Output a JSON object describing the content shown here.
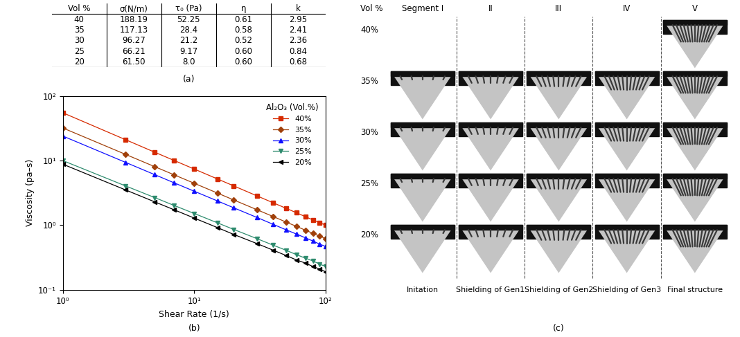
{
  "panel_a": {
    "label": "(a)",
    "table": {
      "columns": [
        "Vol %",
        "σ(N/m)",
        "τ₀ (Pa)",
        "η",
        "k"
      ],
      "rows": [
        [
          "40",
          "188.19",
          "52.25",
          "0.61",
          "2.95"
        ],
        [
          "35",
          "117.13",
          "28.4",
          "0.58",
          "2.41"
        ],
        [
          "30",
          "96.27",
          "21.2",
          "0.52",
          "2.36"
        ],
        [
          "25",
          "66.21",
          "9.17",
          "0.60",
          "0.84"
        ],
        [
          "20",
          "61.50",
          "8.0",
          "0.60",
          "0.68"
        ]
      ]
    }
  },
  "chart_data": {
    "type": "line",
    "panel_label": "(b)",
    "x_label": "Shear Rate (1/s)",
    "y_label": "Viscosity (pa–s)",
    "log": true,
    "xlim": [
      1,
      100
    ],
    "ylim": [
      0.1,
      100
    ],
    "xticks": [
      {
        "value": 1,
        "label": "10⁰"
      },
      {
        "value": 10,
        "label": "10¹"
      },
      {
        "value": 100,
        "label": "10²"
      }
    ],
    "yticks": [
      {
        "value": 0.1,
        "label": "10⁻¹"
      },
      {
        "value": 1,
        "label": "10⁰"
      },
      {
        "value": 10,
        "label": "10¹"
      },
      {
        "value": 100,
        "label": "10²"
      }
    ],
    "legend": "upper right",
    "legend_title": "Al₂O₃ (Vol.%)",
    "x": [
      1,
      3,
      5,
      7,
      10,
      15,
      20,
      30,
      40,
      50,
      60,
      70,
      80,
      90,
      100
    ],
    "series": [
      {
        "name": "40%",
        "color": "#d62a00",
        "marker": "square",
        "values": [
          55.0,
          21.1,
          13.5,
          10.1,
          7.41,
          5.21,
          4.06,
          2.85,
          2.22,
          1.83,
          1.56,
          1.36,
          1.21,
          1.1,
          1.0
        ]
      },
      {
        "name": "35%",
        "color": "#a0400a",
        "marker": "diamond",
        "values": [
          32.0,
          12.5,
          8.07,
          6.05,
          4.46,
          3.15,
          2.46,
          1.74,
          1.36,
          1.12,
          0.96,
          0.84,
          0.75,
          0.68,
          0.62
        ]
      },
      {
        "name": "30%",
        "color": "#1010ff",
        "marker": "triangle_up",
        "values": [
          24.0,
          9.4,
          6.07,
          4.55,
          3.36,
          2.38,
          1.86,
          1.32,
          1.03,
          0.85,
          0.73,
          0.64,
          0.57,
          0.51,
          0.47
        ]
      },
      {
        "name": "25%",
        "color": "#2e8b6e",
        "marker": "triangle_down",
        "values": [
          10.0,
          4.06,
          2.68,
          2.03,
          1.52,
          1.09,
          0.86,
          0.62,
          0.49,
          0.41,
          0.35,
          0.31,
          0.28,
          0.25,
          0.23
        ]
      },
      {
        "name": "20%",
        "color": "#000000",
        "marker": "triangle_left",
        "values": [
          8.8,
          3.52,
          2.3,
          1.74,
          1.29,
          0.92,
          0.72,
          0.52,
          0.41,
          0.34,
          0.29,
          0.26,
          0.23,
          0.21,
          0.19
        ]
      }
    ]
  },
  "panel_c": {
    "label": "(c)",
    "corner_header": "Vol %",
    "segments": [
      "Segment I",
      "II",
      "III",
      "IV",
      "V"
    ],
    "stages": [
      "Initation",
      "Shielding of Gen1",
      "Shielding of Gen2",
      "Shielding of Gen3",
      "Final structure"
    ],
    "rows": [
      {
        "label": "40%",
        "images": [
          false,
          false,
          false,
          false,
          true
        ]
      },
      {
        "label": "35%",
        "images": [
          true,
          true,
          true,
          true,
          true
        ]
      },
      {
        "label": "30%",
        "images": [
          true,
          true,
          true,
          true,
          true
        ]
      },
      {
        "label": "25%",
        "images": [
          true,
          true,
          true,
          true,
          true
        ]
      },
      {
        "label": "20%",
        "images": [
          true,
          true,
          true,
          true,
          true
        ]
      }
    ]
  }
}
